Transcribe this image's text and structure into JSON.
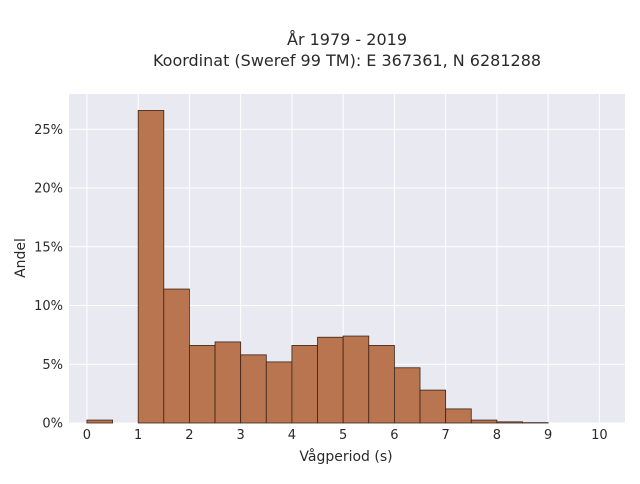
{
  "chart_data": {
    "type": "bar",
    "title_line1": "År 1979 - 2019",
    "title_line2": "Koordinat (Sweref 99 TM): E 367361, N 6281288",
    "xlabel": "Vågperiod (s)",
    "ylabel": "Andel",
    "xlim": [
      -0.35,
      10.5
    ],
    "ylim": [
      0,
      0.28
    ],
    "x_ticks": [
      0,
      1,
      2,
      3,
      4,
      5,
      6,
      7,
      8,
      9,
      10
    ],
    "x_tick_labels": [
      "0",
      "1",
      "2",
      "3",
      "4",
      "5",
      "6",
      "7",
      "8",
      "9",
      "10"
    ],
    "y_ticks": [
      0,
      0.05,
      0.1,
      0.15,
      0.2,
      0.25
    ],
    "y_tick_labels": [
      "0%",
      "5%",
      "10%",
      "15%",
      "20%",
      "25%"
    ],
    "bin_width": 0.5,
    "bins": [
      {
        "start": 0.0,
        "value": 0.0025
      },
      {
        "start": 0.5,
        "value": 0.0
      },
      {
        "start": 1.0,
        "value": 0.266
      },
      {
        "start": 1.5,
        "value": 0.114
      },
      {
        "start": 2.0,
        "value": 0.066
      },
      {
        "start": 2.5,
        "value": 0.069
      },
      {
        "start": 3.0,
        "value": 0.058
      },
      {
        "start": 3.5,
        "value": 0.052
      },
      {
        "start": 4.0,
        "value": 0.066
      },
      {
        "start": 4.5,
        "value": 0.073
      },
      {
        "start": 5.0,
        "value": 0.074
      },
      {
        "start": 5.5,
        "value": 0.066
      },
      {
        "start": 6.0,
        "value": 0.047
      },
      {
        "start": 6.5,
        "value": 0.028
      },
      {
        "start": 7.0,
        "value": 0.012
      },
      {
        "start": 7.5,
        "value": 0.0025
      },
      {
        "start": 8.0,
        "value": 0.001
      },
      {
        "start": 8.5,
        "value": 0.0003
      }
    ],
    "grid": true,
    "bar_color": "#b8754f",
    "bar_edge_color": "#3a2418",
    "background_color": "#e9e9f1",
    "grid_color": "#ffffff"
  }
}
